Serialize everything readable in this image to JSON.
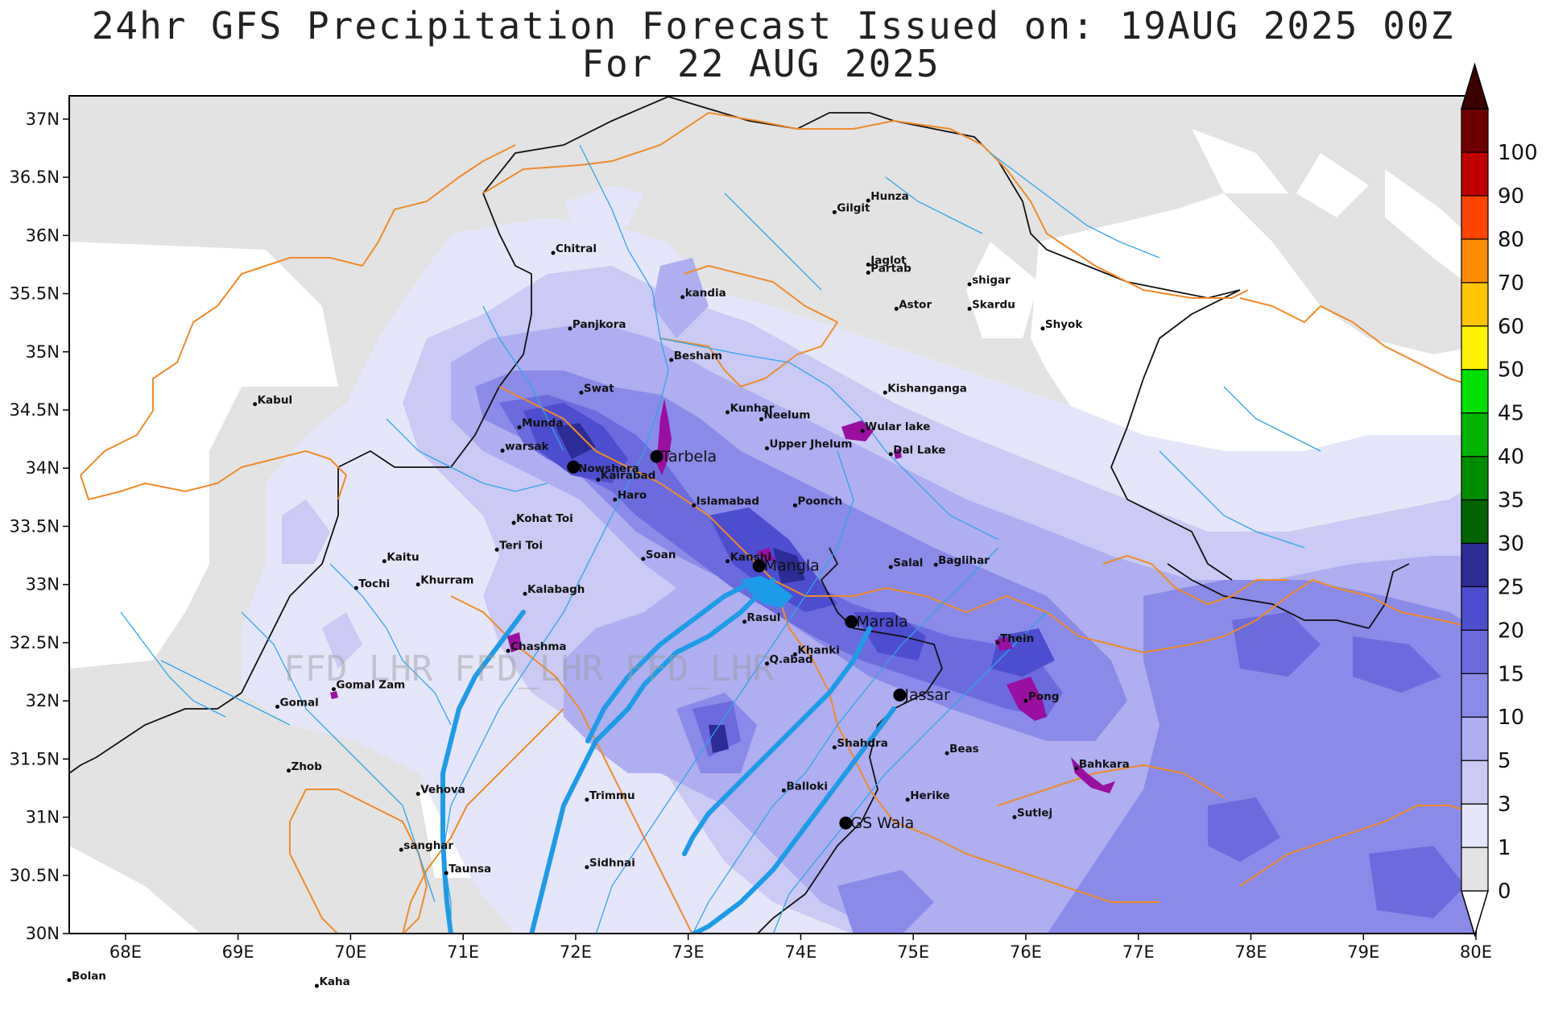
{
  "title": {
    "line1": "24hr GFS Precipitation Forecast Issued on:  19AUG 2025 00Z",
    "line2": "For 22 AUG 2025"
  },
  "axes": {
    "lat_labels": [
      "37N",
      "36.5N",
      "36N",
      "35.5N",
      "35N",
      "34.5N",
      "34N",
      "33.5N",
      "33N",
      "32.5N",
      "32N",
      "31.5N",
      "31N",
      "30.5N",
      "30N"
    ],
    "lon_labels": [
      "68E",
      "69E",
      "70E",
      "71E",
      "72E",
      "73E",
      "74E",
      "75E",
      "76E",
      "77E",
      "78E",
      "79E",
      "80E"
    ]
  },
  "legend": {
    "levels": [
      "0",
      "1",
      "3",
      "5",
      "10",
      "15",
      "20",
      "25",
      "30",
      "35",
      "40",
      "45",
      "50",
      "60",
      "70",
      "80",
      "90",
      "100"
    ],
    "colors": [
      "#e3e3e3",
      "#e6e6fa",
      "#cacaf4",
      "#aeaef0",
      "#8a8ae9",
      "#6b6bdd",
      "#4d4dcf",
      "#2c2c96",
      "#006400",
      "#008c00",
      "#00b400",
      "#00e000",
      "#fff200",
      "#ffc400",
      "#ff8c00",
      "#ff4500",
      "#c00000",
      "#6e0000",
      "#3a0000"
    ]
  },
  "watermark": "FFD_LHR  FFD_LHR  FFD_LHR",
  "cities": [
    {
      "name": "Hunza",
      "lon": 74.6,
      "lat": 36.3
    },
    {
      "name": "Gilgit",
      "lon": 74.3,
      "lat": 36.2
    },
    {
      "name": "Chitral",
      "lon": 71.8,
      "lat": 35.85
    },
    {
      "name": "Jaglot",
      "lon": 74.6,
      "lat": 35.75
    },
    {
      "name": "Partab",
      "lon": 74.6,
      "lat": 35.68
    },
    {
      "name": "shigar",
      "lon": 75.5,
      "lat": 35.58
    },
    {
      "name": "kandia",
      "lon": 72.95,
      "lat": 35.47
    },
    {
      "name": "Astor",
      "lon": 74.85,
      "lat": 35.37
    },
    {
      "name": "Skardu",
      "lon": 75.5,
      "lat": 35.37
    },
    {
      "name": "Panjkora",
      "lon": 71.95,
      "lat": 35.2
    },
    {
      "name": "Shyok",
      "lon": 76.15,
      "lat": 35.2
    },
    {
      "name": "Besham",
      "lon": 72.85,
      "lat": 34.93
    },
    {
      "name": "Swat",
      "lon": 72.05,
      "lat": 34.65
    },
    {
      "name": "Kabul",
      "lon": 69.15,
      "lat": 34.55
    },
    {
      "name": "Kishanganga",
      "lon": 74.75,
      "lat": 34.65
    },
    {
      "name": "Kunhar",
      "lon": 73.35,
      "lat": 34.48
    },
    {
      "name": "Neelum",
      "lon": 73.65,
      "lat": 34.42
    },
    {
      "name": "Munda",
      "lon": 71.5,
      "lat": 34.35
    },
    {
      "name": "Wular lake",
      "lon": 74.55,
      "lat": 34.32
    },
    {
      "name": "warsak",
      "lon": 71.35,
      "lat": 34.15
    },
    {
      "name": "Upper Jhelum",
      "lon": 73.7,
      "lat": 34.17
    },
    {
      "name": "Dal Lake",
      "lon": 74.8,
      "lat": 34.12
    },
    {
      "name": "Kairabad",
      "lon": 72.2,
      "lat": 33.9
    },
    {
      "name": "Haro",
      "lon": 72.35,
      "lat": 33.73
    },
    {
      "name": "Islamabad",
      "lon": 73.05,
      "lat": 33.68
    },
    {
      "name": "Poonch",
      "lon": 73.95,
      "lat": 33.68
    },
    {
      "name": "Kohat Toi",
      "lon": 71.45,
      "lat": 33.53
    },
    {
      "name": "Teri Toi",
      "lon": 71.3,
      "lat": 33.3
    },
    {
      "name": "Soan",
      "lon": 72.6,
      "lat": 33.22
    },
    {
      "name": "Kanshi",
      "lon": 73.35,
      "lat": 33.2
    },
    {
      "name": "Salal",
      "lon": 74.8,
      "lat": 33.15
    },
    {
      "name": "Baglihar",
      "lon": 75.2,
      "lat": 33.17
    },
    {
      "name": "Kaitu",
      "lon": 70.3,
      "lat": 33.2
    },
    {
      "name": "Tochi",
      "lon": 70.05,
      "lat": 32.97
    },
    {
      "name": "Khurram",
      "lon": 70.6,
      "lat": 33.0
    },
    {
      "name": "Kalabagh",
      "lon": 71.55,
      "lat": 32.92
    },
    {
      "name": "Rasul",
      "lon": 73.5,
      "lat": 32.68
    },
    {
      "name": "Thein",
      "lon": 75.75,
      "lat": 32.5
    },
    {
      "name": "Khanki",
      "lon": 73.95,
      "lat": 32.4
    },
    {
      "name": "Chashma",
      "lon": 71.4,
      "lat": 32.43
    },
    {
      "name": "Q.abad",
      "lon": 73.7,
      "lat": 32.32
    },
    {
      "name": "Gomal Zam",
      "lon": 69.85,
      "lat": 32.1
    },
    {
      "name": "Gomal",
      "lon": 69.35,
      "lat": 31.95
    },
    {
      "name": "Pong",
      "lon": 76.0,
      "lat": 32.0
    },
    {
      "name": "Shahdra",
      "lon": 74.3,
      "lat": 31.6
    },
    {
      "name": "Beas",
      "lon": 75.3,
      "lat": 31.55
    },
    {
      "name": "Bahkara",
      "lon": 76.45,
      "lat": 31.42
    },
    {
      "name": "Zhob",
      "lon": 69.45,
      "lat": 31.4
    },
    {
      "name": "Balloki",
      "lon": 73.85,
      "lat": 31.23
    },
    {
      "name": "Vehova",
      "lon": 70.6,
      "lat": 31.2
    },
    {
      "name": "Trimmu",
      "lon": 72.1,
      "lat": 31.15
    },
    {
      "name": "Herike",
      "lon": 74.95,
      "lat": 31.15
    },
    {
      "name": "Sutlej",
      "lon": 75.9,
      "lat": 31.0
    },
    {
      "name": "sanghar",
      "lon": 70.45,
      "lat": 30.72
    },
    {
      "name": "Sidhnai",
      "lon": 72.1,
      "lat": 30.57
    },
    {
      "name": "Taunsa",
      "lon": 70.85,
      "lat": 30.52
    },
    {
      "name": "Bolan",
      "lon": 67.5,
      "lat": 29.6
    },
    {
      "name": "Kaha",
      "lon": 69.7,
      "lat": 29.55
    }
  ],
  "stations": [
    {
      "name": "Nowshera",
      "lon": 71.98,
      "lat": 34.01,
      "label_size": "small"
    },
    {
      "name": "Tarbela",
      "lon": 72.72,
      "lat": 34.1,
      "label_size": "large"
    },
    {
      "name": "Mangla",
      "lon": 73.63,
      "lat": 33.16,
      "label_size": "large"
    },
    {
      "name": "Marala",
      "lon": 74.45,
      "lat": 32.68,
      "label_size": "large"
    },
    {
      "name": "Jassar",
      "lon": 74.88,
      "lat": 32.05,
      "label_size": "large"
    },
    {
      "name": "GS Wala",
      "lon": 74.4,
      "lat": 30.95,
      "label_size": "large"
    }
  ]
}
